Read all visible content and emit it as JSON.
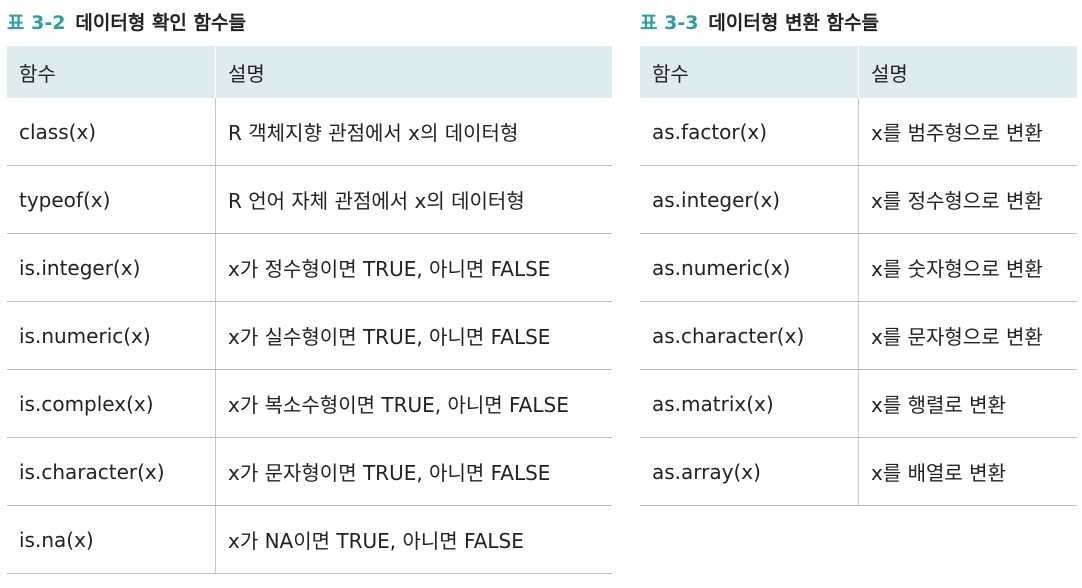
{
  "table_left": {
    "caption_number": "표 3-2",
    "caption_title": "데이터형 확인 함수들",
    "headers": [
      "함수",
      "설명"
    ],
    "rows": [
      [
        "class(x)",
        "R 객체지향 관점에서 x의 데이터형"
      ],
      [
        "typeof(x)",
        "R 언어 자체 관점에서 x의 데이터형"
      ],
      [
        "is.integer(x)",
        "x가 정수형이면 TRUE, 아니면 FALSE"
      ],
      [
        "is.numeric(x)",
        "x가 실수형이면 TRUE, 아니면 FALSE"
      ],
      [
        "is.complex(x)",
        "x가 복소수형이면 TRUE, 아니면 FALSE"
      ],
      [
        "is.character(x)",
        "x가 문자형이면 TRUE, 아니면 FALSE"
      ],
      [
        "is.na(x)",
        "x가 NA이면 TRUE, 아니면 FALSE"
      ]
    ]
  },
  "table_right": {
    "caption_number": "표 3-3",
    "caption_title": "데이터형 변환 함수들",
    "headers": [
      "함수",
      "설명"
    ],
    "rows": [
      [
        "as.factor(x)",
        "x를 범주형으로 변환"
      ],
      [
        "as.integer(x)",
        "x를 정수형으로 변환"
      ],
      [
        "as.numeric(x)",
        "x를 숫자형으로 변환"
      ],
      [
        "as.character(x)",
        "x를 문자형으로 변환"
      ],
      [
        "as.matrix(x)",
        "x를 행렬로 변환"
      ],
      [
        "as.array(x)",
        "x를 배열로 변환"
      ]
    ]
  },
  "colors": {
    "caption_accent": "#2e9fa0",
    "header_bg": "#dfecef",
    "rule": "#bcbcbc"
  }
}
